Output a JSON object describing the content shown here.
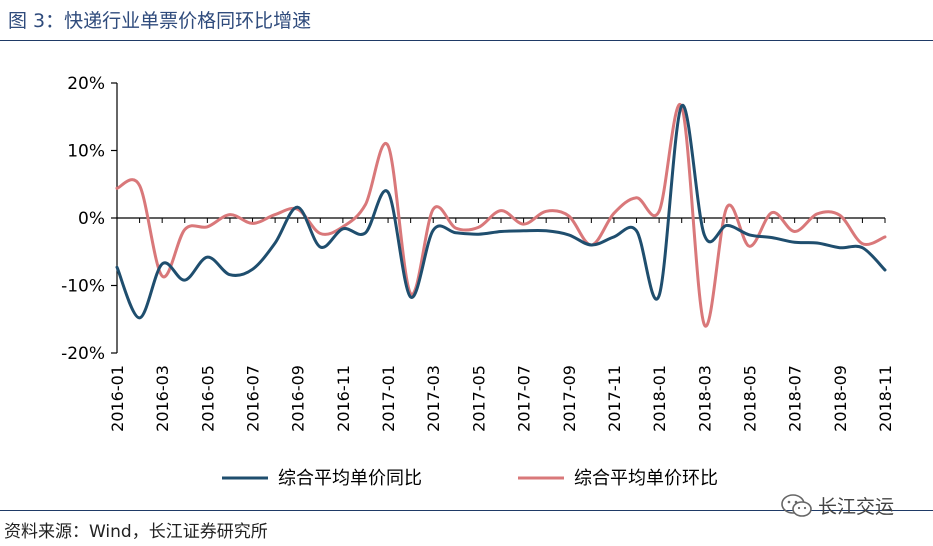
{
  "title": "图 3：快递行业单票价格同环比增速",
  "source": "资料来源：Wind，长江证券研究所",
  "watermark": "长江交运",
  "chart_data": {
    "type": "line",
    "title": "",
    "xlabel": "",
    "ylabel": "",
    "ylim": [
      -20,
      20
    ],
    "y_ticks": [
      20,
      10,
      0,
      -10,
      -20
    ],
    "y_tick_labels": [
      "20%",
      "10%",
      "0%",
      "-10%",
      "-20%"
    ],
    "x": [
      "2016-01",
      "2016-02",
      "2016-03",
      "2016-04",
      "2016-05",
      "2016-06",
      "2016-07",
      "2016-08",
      "2016-09",
      "2016-10",
      "2016-11",
      "2016-12",
      "2017-01",
      "2017-02",
      "2017-03",
      "2017-04",
      "2017-05",
      "2017-06",
      "2017-07",
      "2017-08",
      "2017-09",
      "2017-10",
      "2017-11",
      "2017-12",
      "2018-01",
      "2018-02",
      "2018-03",
      "2018-04",
      "2018-05",
      "2018-06",
      "2018-07",
      "2018-08",
      "2018-09",
      "2018-10",
      "2018-11"
    ],
    "x_tick_labels": [
      "2016-01",
      "2016-03",
      "2016-05",
      "2016-07",
      "2016-09",
      "2016-11",
      "2017-01",
      "2017-03",
      "2017-05",
      "2017-07",
      "2017-09",
      "2017-11",
      "2018-01",
      "2018-03",
      "2018-05",
      "2018-07",
      "2018-09",
      "2018-11"
    ],
    "legend_position": "bottom",
    "grid": false,
    "series": [
      {
        "name": "综合平均单价同比",
        "color": "#1f4e6e",
        "values": [
          -7.3,
          -14.8,
          -6.8,
          -9.2,
          -5.8,
          -8.4,
          -7.6,
          -3.7,
          1.6,
          -4.3,
          -1.6,
          -2.2,
          3.8,
          -11.7,
          -1.8,
          -2.2,
          -2.4,
          -2.0,
          -1.9,
          -1.9,
          -2.5,
          -4.0,
          -2.8,
          -1.9,
          -11.5,
          16.6,
          -2.5,
          -1.1,
          -2.5,
          -2.9,
          -3.6,
          -3.7,
          -4.4,
          -4.4,
          -7.7
        ]
      },
      {
        "name": "综合平均单价环比",
        "color": "#d9787a",
        "values": [
          4.4,
          4.8,
          -8.6,
          -1.7,
          -1.3,
          0.5,
          -0.8,
          0.5,
          1.3,
          -2.3,
          -1.3,
          2.0,
          10.7,
          -11.2,
          1.3,
          -1.5,
          -1.4,
          1.1,
          -0.9,
          1.0,
          0.3,
          -4.0,
          0.7,
          3.0,
          1.0,
          16.5,
          -15.8,
          1.6,
          -4.2,
          0.8,
          -2.0,
          0.6,
          0.4,
          -3.8,
          -2.8
        ]
      }
    ]
  }
}
